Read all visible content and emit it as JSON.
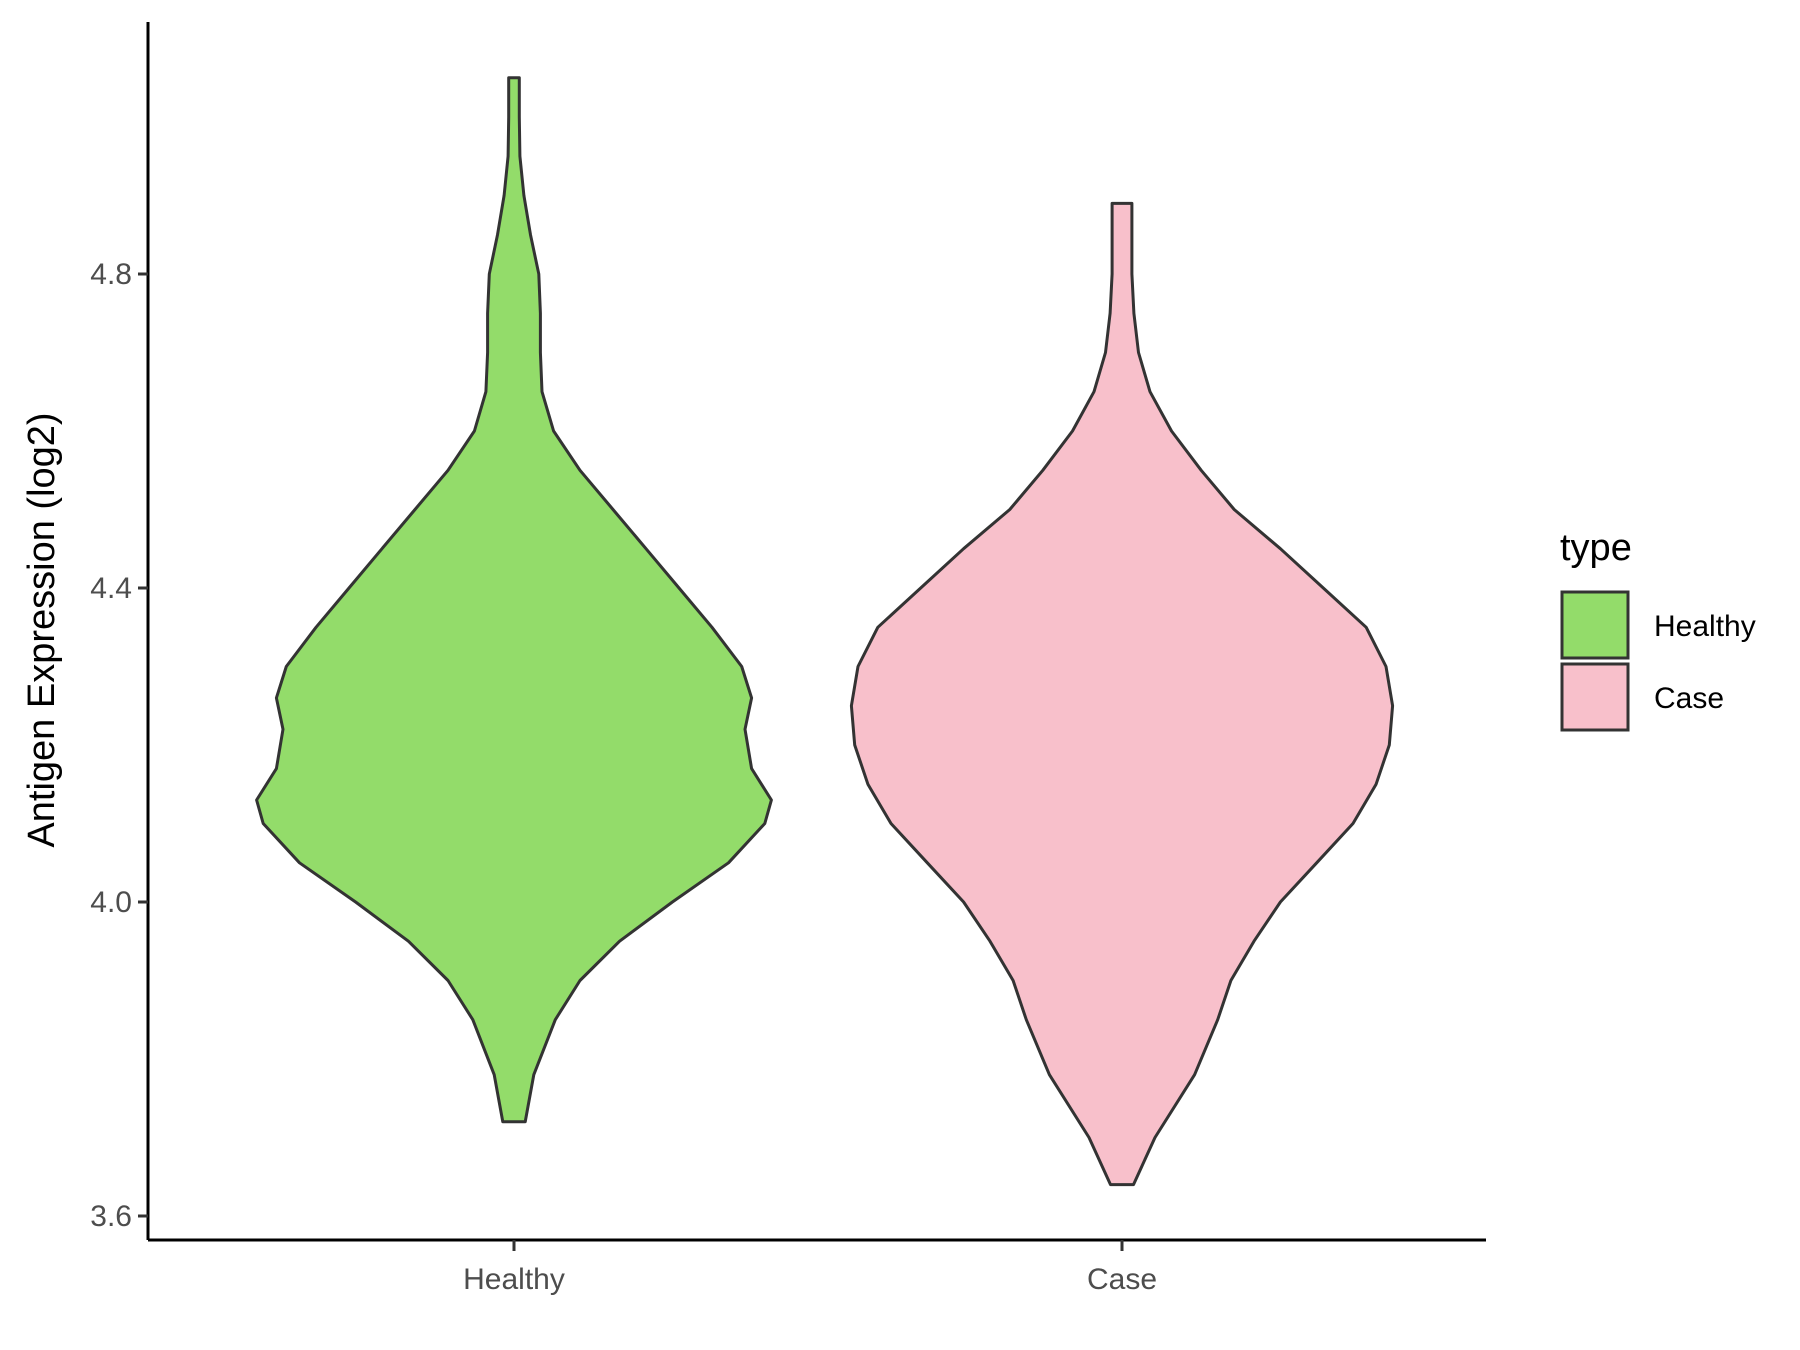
{
  "chart_data": {
    "type": "violin",
    "title": "",
    "xlabel": "",
    "ylabel": "Antigen Expression (log2)",
    "categories": [
      "Healthy",
      "Case"
    ],
    "ylim": [
      3.57,
      5.12
    ],
    "yticks": [
      3.6,
      4.0,
      4.4,
      4.8
    ],
    "ytick_labels": [
      "3.6",
      "4.0",
      "4.4",
      "4.8"
    ],
    "grid": false,
    "legend": {
      "title": "type",
      "position": "right",
      "entries": [
        {
          "label": "Healthy",
          "color": "#93dc6a"
        },
        {
          "label": "Case",
          "color": "#f8c0cb"
        }
      ]
    },
    "series": [
      {
        "name": "Healthy",
        "color": "#93dc6a",
        "min": 3.72,
        "max": 5.05,
        "density": [
          [
            3.72,
            0.034
          ],
          [
            3.78,
            0.06
          ],
          [
            3.85,
            0.125
          ],
          [
            3.9,
            0.2
          ],
          [
            3.95,
            0.32
          ],
          [
            4.0,
            0.48
          ],
          [
            4.05,
            0.65
          ],
          [
            4.1,
            0.76
          ],
          [
            4.13,
            0.78
          ],
          [
            4.17,
            0.72
          ],
          [
            4.22,
            0.7
          ],
          [
            4.26,
            0.72
          ],
          [
            4.3,
            0.69
          ],
          [
            4.35,
            0.6
          ],
          [
            4.4,
            0.5
          ],
          [
            4.45,
            0.4
          ],
          [
            4.5,
            0.3
          ],
          [
            4.55,
            0.2
          ],
          [
            4.6,
            0.12
          ],
          [
            4.65,
            0.085
          ],
          [
            4.7,
            0.08
          ],
          [
            4.75,
            0.08
          ],
          [
            4.8,
            0.075
          ],
          [
            4.85,
            0.05
          ],
          [
            4.9,
            0.03
          ],
          [
            4.95,
            0.018
          ],
          [
            5.0,
            0.016
          ],
          [
            5.05,
            0.016
          ]
        ]
      },
      {
        "name": "Case",
        "color": "#f8c0cb",
        "min": 3.64,
        "max": 4.89,
        "density": [
          [
            3.64,
            0.035
          ],
          [
            3.7,
            0.1
          ],
          [
            3.78,
            0.22
          ],
          [
            3.85,
            0.29
          ],
          [
            3.9,
            0.33
          ],
          [
            3.95,
            0.4
          ],
          [
            4.0,
            0.48
          ],
          [
            4.05,
            0.59
          ],
          [
            4.1,
            0.7
          ],
          [
            4.15,
            0.77
          ],
          [
            4.2,
            0.81
          ],
          [
            4.25,
            0.82
          ],
          [
            4.3,
            0.8
          ],
          [
            4.35,
            0.74
          ],
          [
            4.4,
            0.61
          ],
          [
            4.45,
            0.48
          ],
          [
            4.5,
            0.34
          ],
          [
            4.55,
            0.24
          ],
          [
            4.6,
            0.15
          ],
          [
            4.65,
            0.085
          ],
          [
            4.7,
            0.05
          ],
          [
            4.75,
            0.036
          ],
          [
            4.8,
            0.03
          ],
          [
            4.85,
            0.03
          ],
          [
            4.89,
            0.03
          ]
        ]
      }
    ]
  }
}
